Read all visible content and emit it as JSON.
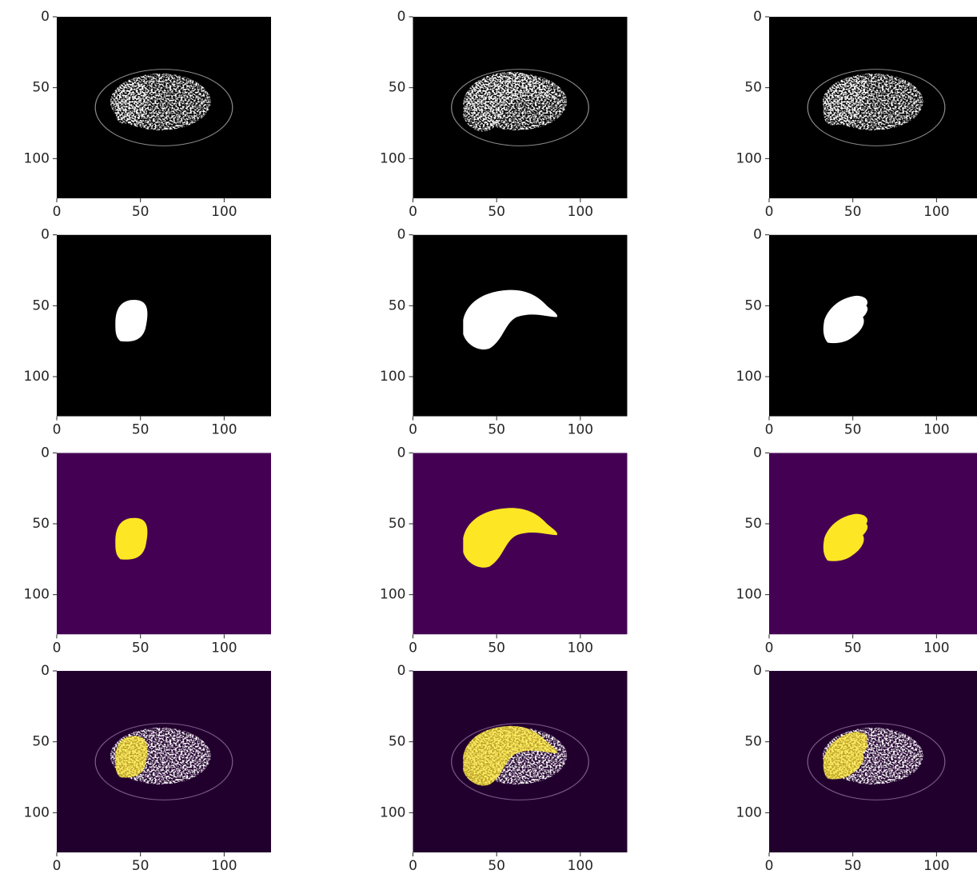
{
  "chart_data": [
    {
      "type": "image",
      "cmap": "gray",
      "xlim": [
        0,
        128
      ],
      "ylim": [
        128,
        0
      ],
      "xticks": [
        0,
        50,
        100
      ],
      "yticks": [
        0,
        50,
        100
      ]
    },
    {
      "type": "image",
      "cmap": "gray",
      "xlim": [
        0,
        128
      ],
      "ylim": [
        128,
        0
      ],
      "xticks": [
        0,
        50,
        100
      ],
      "yticks": [
        0,
        50,
        100
      ]
    },
    {
      "type": "image",
      "cmap": "gray",
      "xlim": [
        0,
        128
      ],
      "ylim": [
        128,
        0
      ],
      "xticks": [
        0,
        50,
        100
      ],
      "yticks": [
        0,
        50,
        100
      ]
    },
    {
      "type": "image",
      "cmap": "gray",
      "xlim": [
        0,
        128
      ],
      "ylim": [
        128,
        0
      ],
      "xticks": [
        0,
        50,
        100
      ],
      "yticks": [
        0,
        50,
        100
      ]
    },
    {
      "type": "image",
      "cmap": "gray",
      "xlim": [
        0,
        128
      ],
      "ylim": [
        128,
        0
      ],
      "xticks": [
        0,
        50,
        100
      ],
      "yticks": [
        0,
        50,
        100
      ]
    },
    {
      "type": "image",
      "cmap": "gray",
      "xlim": [
        0,
        128
      ],
      "ylim": [
        128,
        0
      ],
      "xticks": [
        0,
        50,
        100
      ],
      "yticks": [
        0,
        50,
        100
      ]
    },
    {
      "type": "image",
      "cmap": "viridis",
      "xlim": [
        0,
        128
      ],
      "ylim": [
        128,
        0
      ],
      "xticks": [
        0,
        50,
        100
      ],
      "yticks": [
        0,
        50,
        100
      ]
    },
    {
      "type": "image",
      "cmap": "viridis",
      "xlim": [
        0,
        128
      ],
      "ylim": [
        128,
        0
      ],
      "xticks": [
        0,
        50,
        100
      ],
      "yticks": [
        0,
        50,
        100
      ]
    },
    {
      "type": "image",
      "cmap": "viridis",
      "xlim": [
        0,
        128
      ],
      "ylim": [
        128,
        0
      ],
      "xticks": [
        0,
        50,
        100
      ],
      "yticks": [
        0,
        50,
        100
      ]
    },
    {
      "type": "image",
      "cmap": "viridis",
      "xlim": [
        0,
        128
      ],
      "ylim": [
        128,
        0
      ],
      "xticks": [
        0,
        50,
        100
      ],
      "yticks": [
        0,
        50,
        100
      ]
    },
    {
      "type": "image",
      "cmap": "viridis",
      "xlim": [
        0,
        128
      ],
      "ylim": [
        128,
        0
      ],
      "xticks": [
        0,
        50,
        100
      ],
      "yticks": [
        0,
        50,
        100
      ]
    },
    {
      "type": "image",
      "cmap": "viridis",
      "xlim": [
        0,
        128
      ],
      "ylim": [
        128,
        0
      ],
      "xticks": [
        0,
        50,
        100
      ],
      "yticks": [
        0,
        50,
        100
      ]
    }
  ]
}
